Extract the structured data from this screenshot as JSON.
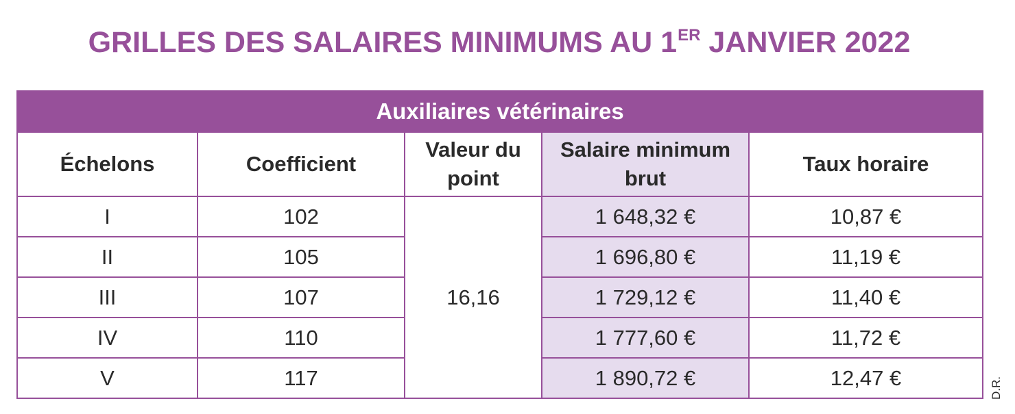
{
  "title": {
    "main": "GRILLES DES SALAIRES MINIMUMS AU 1",
    "sup": "ER",
    "tail": " JANVIER 2022"
  },
  "table": {
    "band": "Auxiliaires vétérinaires",
    "headers": {
      "echelons": "Échelons",
      "coefficient": "Coefficient",
      "valeur": "Valeur du point",
      "salaire": "Salaire minimum brut",
      "taux": "Taux horaire"
    },
    "valeur_point": "16,16",
    "rows": [
      {
        "echelon": "I",
        "coefficient": "102",
        "salaire": "1 648,32 €",
        "taux": "10,87 €"
      },
      {
        "echelon": "II",
        "coefficient": "105",
        "salaire": "1 696,80 €",
        "taux": "11,19 €"
      },
      {
        "echelon": "III",
        "coefficient": "107",
        "salaire": "1 729,12 €",
        "taux": "11,40 €"
      },
      {
        "echelon": "IV",
        "coefficient": "110",
        "salaire": "1 777,60 €",
        "taux": "11,72 €"
      },
      {
        "echelon": "V",
        "coefficient": "117",
        "salaire": "1 890,72 €",
        "taux": "12,47 €"
      }
    ]
  },
  "credit": "D.R.",
  "colors": {
    "accent": "#97509a",
    "shade": "#e6dcee",
    "text": "#2a2a2a"
  }
}
